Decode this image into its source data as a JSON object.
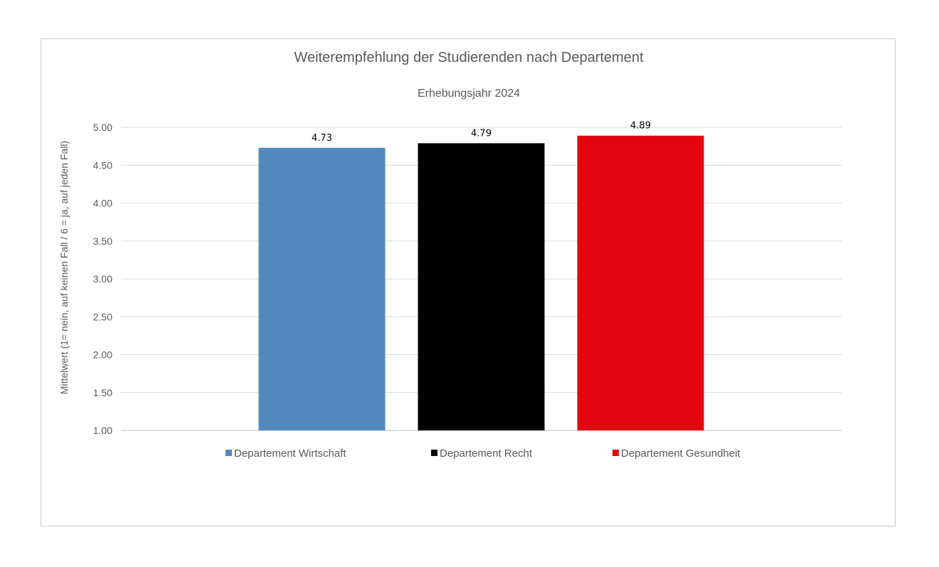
{
  "chart_data": {
    "type": "bar",
    "title": "Weiterempfehlung der Studierenden nach Departement",
    "subtitle": "Erhebungsjahr 2024",
    "ylabel": "Mittelwert (1= nein, auf keinen Fall / 6 = ja, auf jeden Fall)",
    "xlabel": "",
    "ylim": [
      1.0,
      5.0
    ],
    "yticks": [
      "1.00",
      "1.50",
      "2.00",
      "2.50",
      "3.00",
      "3.50",
      "4.00",
      "4.50",
      "5.00"
    ],
    "grid": true,
    "legend_position": "bottom",
    "series": [
      {
        "name": "Departement Wirtschaft",
        "value": 4.73,
        "label": "4.73",
        "color": "#5289BD"
      },
      {
        "name": "Departement Recht",
        "value": 4.79,
        "label": "4.79",
        "color": "#000000"
      },
      {
        "name": "Departement Gesundheit",
        "value": 4.89,
        "label": "4.89",
        "color": "#E20613"
      }
    ]
  }
}
